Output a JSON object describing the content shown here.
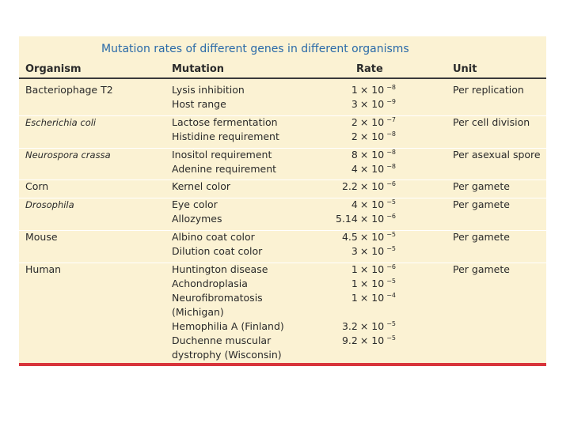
{
  "title": "Mutation rates of different genes in different organisms",
  "headers": {
    "organism": "Organism",
    "mutation": "Mutation",
    "rate": "Rate",
    "unit": "Unit"
  },
  "rows": [
    {
      "organism": "Bacteriophage T2",
      "italic": false,
      "unit": "Per replication",
      "mutations": [
        {
          "name": "Lysis inhibition",
          "coef": "1",
          "exp": "−8"
        },
        {
          "name": "Host range",
          "coef": "3",
          "exp": "−9"
        }
      ]
    },
    {
      "organism": "Escherichia coli",
      "italic": true,
      "unit": "Per cell division",
      "mutations": [
        {
          "name": "Lactose fermentation",
          "coef": "2",
          "exp": "−7"
        },
        {
          "name": "Histidine requirement",
          "coef": "2",
          "exp": "−8"
        }
      ]
    },
    {
      "organism": "Neurospora crassa",
      "italic": true,
      "unit": "Per asexual spore",
      "mutations": [
        {
          "name": "Inositol requirement",
          "coef": "8",
          "exp": "−8"
        },
        {
          "name": "Adenine requirement",
          "coef": "4",
          "exp": "−8"
        }
      ]
    },
    {
      "organism": "Corn",
      "italic": false,
      "unit": "Per gamete",
      "mutations": [
        {
          "name": "Kernel color",
          "coef": "2.2",
          "exp": "−6"
        }
      ]
    },
    {
      "organism": "Drosophila",
      "italic": true,
      "unit": "Per gamete",
      "mutations": [
        {
          "name": "Eye color",
          "coef": "4",
          "exp": "−5"
        },
        {
          "name": "Allozymes",
          "coef": "5.14",
          "exp": "−6"
        }
      ]
    },
    {
      "organism": "Mouse",
      "italic": false,
      "unit": "Per gamete",
      "mutations": [
        {
          "name": "Albino coat color",
          "coef": "4.5",
          "exp": "−5"
        },
        {
          "name": "Dilution coat color",
          "coef": "3",
          "exp": "−5"
        }
      ]
    },
    {
      "organism": "Human",
      "italic": false,
      "unit": "Per gamete",
      "mutations": [
        {
          "name": "Huntington disease",
          "coef": "1",
          "exp": "−6"
        },
        {
          "name": "Achondroplasia",
          "coef": "1",
          "exp": "−5"
        },
        {
          "name": "Neurofibromatosis",
          "coef": "1",
          "exp": "−4"
        },
        {
          "name": "(Michigan)",
          "coef": "",
          "exp": ""
        },
        {
          "name": "Hemophilia A (Finland)",
          "coef": "3.2",
          "exp": "−5"
        },
        {
          "name": "Duchenne muscular",
          "coef": "9.2",
          "exp": "−5"
        },
        {
          "name": "dystrophy (Wisconsin)",
          "coef": "",
          "exp": ""
        }
      ]
    }
  ]
}
